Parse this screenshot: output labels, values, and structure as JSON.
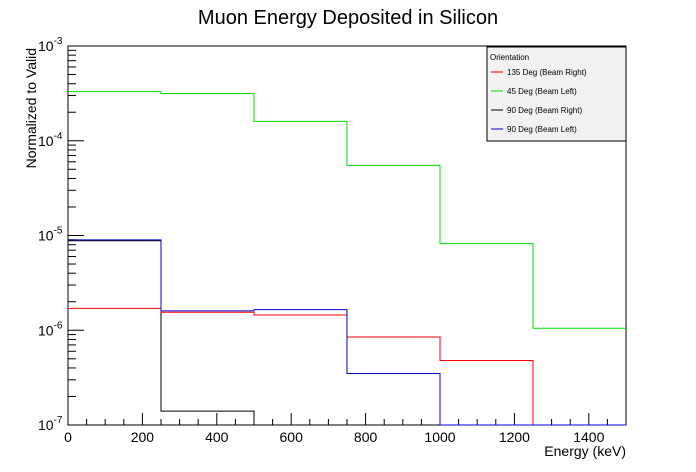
{
  "chart_data": {
    "type": "line",
    "title": "Muon Energy Deposited in Silicon",
    "xlabel": "Energy (keV)",
    "ylabel": "Normalized to Valid",
    "xlim": [
      0,
      1500
    ],
    "ylim": [
      1e-07,
      0.001
    ],
    "yscale": "log",
    "x_tick_labels": [
      "0",
      "200",
      "400",
      "600",
      "800",
      "1000",
      "1200",
      "1400"
    ],
    "y_tick_labels": [
      {
        "base": "10",
        "exp": "-7",
        "value": 1e-07
      },
      {
        "base": "10",
        "exp": "-6",
        "value": 1e-06
      },
      {
        "base": "10",
        "exp": "-5",
        "value": 1e-05
      },
      {
        "base": "10",
        "exp": "-4",
        "value": 0.0001
      },
      {
        "base": "10",
        "exp": "-3",
        "value": 0.001
      }
    ],
    "bin_edges": [
      0,
      250,
      500,
      750,
      1000,
      1250,
      1500
    ],
    "legend_title": "Orientation",
    "legend_position": "top-right",
    "grid": false,
    "series": [
      {
        "name": "135 Deg (Beam Right)",
        "color": "#ff0000",
        "values": [
          1.7e-06,
          1.55e-06,
          1.45e-06,
          8.5e-07,
          4.8e-07,
          0
        ]
      },
      {
        "name": "45 Deg (Beam Left)",
        "color": "#00dd00",
        "values": [
          0.00033,
          0.000315,
          0.00016,
          5.5e-05,
          8.2e-06,
          1.05e-06
        ]
      },
      {
        "name": "90 Deg (Beam Right)",
        "color": "#000000",
        "values": [
          8.8e-06,
          1.4e-07,
          0,
          0,
          0,
          0
        ]
      },
      {
        "name": "90 Deg (Beam Left)",
        "color": "#0000cc",
        "values": [
          9e-06,
          1.6e-06,
          1.65e-06,
          3.5e-07,
          0,
          0
        ]
      }
    ]
  }
}
